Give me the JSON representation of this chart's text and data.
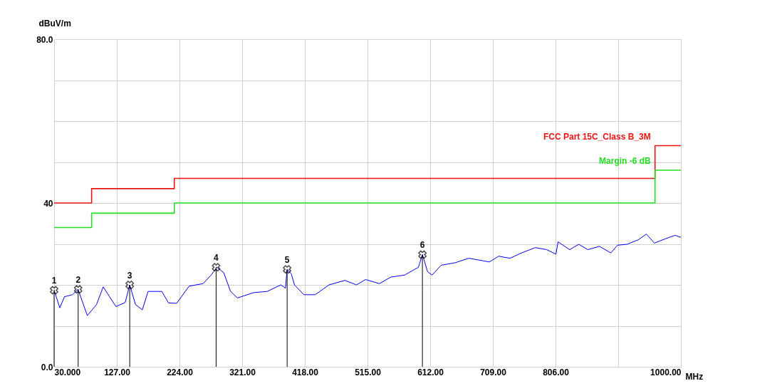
{
  "chart_data": {
    "type": "line",
    "xlabel": "MHz",
    "ylabel": "dBuV/m",
    "xlim": [
      30,
      1000
    ],
    "ylim": [
      0,
      80
    ],
    "xticks": [
      {
        "value": 30,
        "label": "30.000"
      },
      {
        "value": 127,
        "label": "127.00"
      },
      {
        "value": 224,
        "label": "224.00"
      },
      {
        "value": 321,
        "label": "321.00"
      },
      {
        "value": 418,
        "label": "418.00"
      },
      {
        "value": 515,
        "label": "515.00"
      },
      {
        "value": 612,
        "label": "612.00"
      },
      {
        "value": 709,
        "label": "709.00"
      },
      {
        "value": 806,
        "label": "806.00"
      },
      {
        "value": 903,
        "label": null
      },
      {
        "value": 1000,
        "label": "1000.00"
      }
    ],
    "yticks": [
      {
        "value": 0,
        "label": "0.0"
      },
      {
        "value": 10,
        "label": null
      },
      {
        "value": 20,
        "label": null
      },
      {
        "value": 30,
        "label": null
      },
      40,
      {
        "value": 50,
        "label": null
      },
      {
        "value": 60,
        "label": null
      },
      {
        "value": 70,
        "label": null
      },
      {
        "value": 80,
        "label": "80.0"
      }
    ],
    "grid": true,
    "series": [
      {
        "name": "FCC Part 15C_Class B_3M",
        "type": "step",
        "color": "#ee1111",
        "x": [
          30,
          88,
          216,
          960,
          1000
        ],
        "values": [
          40,
          43.5,
          46,
          54,
          54
        ]
      },
      {
        "name": "Margin -6 dB",
        "type": "step",
        "color": "#22dd22",
        "x": [
          30,
          88,
          216,
          960,
          1000
        ],
        "values": [
          34,
          37.5,
          40,
          48,
          48
        ]
      },
      {
        "color": "#0000ee",
        "x": [
          30,
          38.8,
          46,
          58.4,
          67,
          81.4,
          95.6,
          106,
          115,
          125.7,
          140,
          147,
          155.9,
          166.5,
          175.4,
          196.7,
          207,
          219.7,
          239,
          260.5,
          273,
          281.8,
          292.4,
          303,
          313.7,
          338.5,
          359.8,
          381,
          388,
          390.6,
          397,
          402,
          416.5,
          434,
          455.5,
          480,
          498,
          512,
          533.5,
          551,
          572.6,
          593.8,
          600,
          608,
          615,
          629,
          650.5,
          671.8,
          693,
          703.7,
          718,
          735.6,
          753.4,
          774.7,
          792.4,
          806.6,
          810,
          828,
          842,
          856,
          874,
          891.7,
          902,
          916.5,
          934,
          946.6,
          959,
          976.8,
          991,
          1000
        ],
        "values": [
          18.7,
          14.4,
          17.1,
          17.6,
          18.9,
          12.5,
          15.2,
          19.5,
          17.3,
          14.7,
          15.7,
          20,
          15.2,
          13.9,
          18.4,
          18.4,
          15.6,
          15.5,
          19.7,
          20.3,
          22.4,
          24.3,
          23.0,
          18.4,
          16.8,
          18.1,
          18.4,
          20,
          19.2,
          23.8,
          22.7,
          20,
          17.6,
          17.6,
          20,
          21.1,
          20,
          21.3,
          20.3,
          21.9,
          22.4,
          24.3,
          27.4,
          23.2,
          22.4,
          24.8,
          25.4,
          26.5,
          25.9,
          25.6,
          27.0,
          26.5,
          27.8,
          29.1,
          28.6,
          27.5,
          30.5,
          28.6,
          29.9,
          28.6,
          29.4,
          27.8,
          29.7,
          29.9,
          31.0,
          32.4,
          30.2,
          31.3,
          32.1,
          31.6
        ]
      },
      {
        "type": "lollipop",
        "color": "#000000",
        "marker": "cross",
        "x": [
          30,
          67.2,
          147,
          280.7,
          390.6,
          600
        ],
        "values": [
          18.7,
          18.9,
          20,
          24.3,
          23.8,
          27.4
        ]
      }
    ],
    "annotations": [
      {
        "text": "1",
        "x": 30,
        "y": 18.7
      },
      {
        "text": "2",
        "x": 67.2,
        "y": 18.9
      },
      {
        "text": "3",
        "x": 147,
        "y": 20
      },
      {
        "text": "4",
        "x": 280.7,
        "y": 24.3
      },
      {
        "text": "5",
        "x": 390.6,
        "y": 23.8
      },
      {
        "text": "6",
        "x": 600,
        "y": 27.4
      }
    ]
  }
}
